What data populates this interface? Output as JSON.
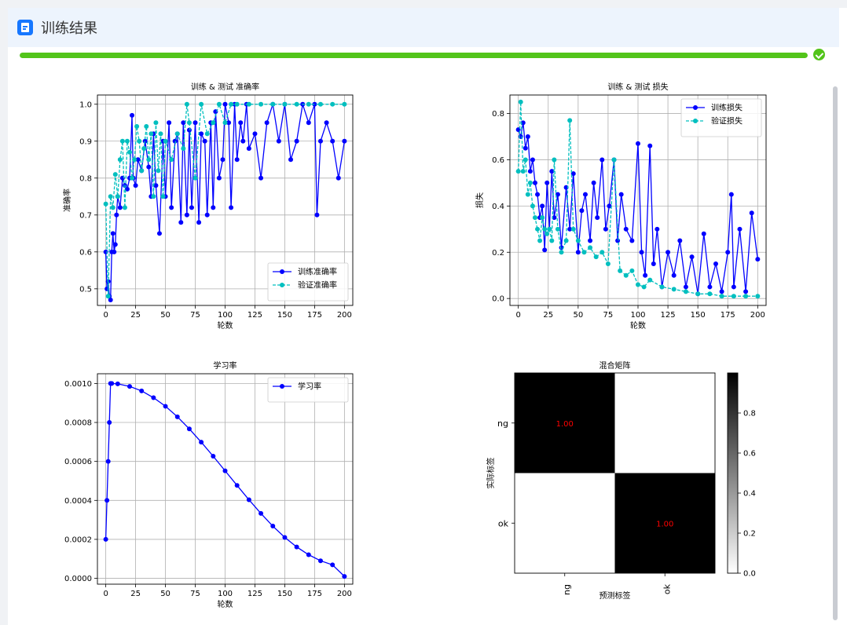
{
  "header": {
    "title": "训练结果",
    "icon": "document-icon"
  },
  "progress": {
    "percent": 100,
    "status": "success",
    "color": "#52c41a"
  },
  "chart_data": [
    {
      "type": "line",
      "title": "训练 & 测试 准确率",
      "xlabel": "轮数",
      "ylabel": "准确率",
      "xlim": [
        -7,
        207
      ],
      "ylim": [
        0.455,
        1.025
      ],
      "xticks": [
        0,
        25,
        50,
        75,
        100,
        125,
        150,
        175,
        200
      ],
      "yticks": [
        0.5,
        0.6,
        0.7,
        0.8,
        0.9,
        1.0
      ],
      "ytick_labels": [
        "0.5",
        "0.6",
        "0.7",
        "0.8",
        "0.9",
        "1.0"
      ],
      "grid": true,
      "legend": "lower-right",
      "series": [
        {
          "name": "训练准确率",
          "color": "#0000ff",
          "style": "solid",
          "x": [
            0,
            1,
            2,
            3,
            4,
            5,
            6,
            7,
            8,
            9,
            10,
            12,
            14,
            16,
            18,
            20,
            22,
            23,
            25,
            27,
            30,
            33,
            36,
            38,
            40,
            42,
            45,
            48,
            50,
            53,
            55,
            58,
            60,
            63,
            65,
            68,
            70,
            72,
            75,
            78,
            80,
            83,
            85,
            88,
            90,
            92,
            95,
            98,
            100,
            103,
            105,
            108,
            110,
            113,
            115,
            118,
            120,
            125,
            130,
            135,
            140,
            145,
            150,
            155,
            160,
            165,
            170,
            175,
            177,
            180,
            185,
            190,
            195,
            200
          ],
          "y": [
            0.6,
            0.5,
            0.52,
            0.48,
            0.47,
            0.6,
            0.65,
            0.6,
            0.62,
            0.7,
            0.75,
            0.72,
            0.8,
            0.78,
            0.77,
            0.8,
            0.97,
            0.8,
            0.78,
            0.85,
            0.82,
            0.9,
            0.83,
            0.75,
            0.92,
            0.78,
            0.65,
            0.9,
            0.75,
            0.95,
            0.72,
            0.9,
            0.92,
            0.68,
            0.95,
            0.7,
            0.93,
            0.72,
            0.95,
            0.68,
            0.92,
            0.9,
            0.7,
            0.95,
            0.72,
            0.98,
            0.8,
            0.85,
            1.0,
            0.95,
            0.72,
            1.0,
            0.85,
            0.95,
            0.9,
            1.0,
            0.88,
            0.92,
            0.8,
            0.95,
            1.0,
            0.9,
            1.0,
            0.85,
            0.9,
            1.0,
            0.95,
            1.0,
            0.7,
            0.9,
            0.95,
            0.9,
            0.8,
            0.9
          ]
        },
        {
          "name": "验证准确率",
          "color": "#00bfbf",
          "style": "dashed",
          "x": [
            0,
            2,
            4,
            6,
            8,
            10,
            12,
            14,
            16,
            18,
            20,
            22,
            24,
            26,
            28,
            30,
            32,
            34,
            36,
            38,
            40,
            42,
            44,
            46,
            48,
            50,
            55,
            60,
            65,
            68,
            70,
            75,
            80,
            85,
            90,
            95,
            100,
            105,
            110,
            120,
            130,
            140,
            150,
            160,
            170,
            180,
            190,
            200
          ],
          "y": [
            0.73,
            0.48,
            0.75,
            0.72,
            0.81,
            0.75,
            0.85,
            0.9,
            0.72,
            0.9,
            0.87,
            0.8,
            0.85,
            0.94,
            0.9,
            0.82,
            0.88,
            0.94,
            0.85,
            0.92,
            0.75,
            0.95,
            0.82,
            0.92,
            0.75,
            0.9,
            0.85,
            0.92,
            0.88,
            1.0,
            0.95,
            0.8,
            1.0,
            0.92,
            0.95,
            1.0,
            0.95,
            1.0,
            1.0,
            1.0,
            1.0,
            1.0,
            1.0,
            1.0,
            1.0,
            1.0,
            1.0,
            1.0
          ]
        }
      ]
    },
    {
      "type": "line",
      "title": "训练 & 测试 损失",
      "xlabel": "轮数",
      "ylabel": "损失",
      "xlim": [
        -7,
        207
      ],
      "ylim": [
        -0.03,
        0.88
      ],
      "xticks": [
        0,
        25,
        50,
        75,
        100,
        125,
        150,
        175,
        200
      ],
      "yticks": [
        0.0,
        0.2,
        0.4,
        0.6,
        0.8
      ],
      "ytick_labels": [
        "0.0",
        "0.2",
        "0.4",
        "0.6",
        "0.8"
      ],
      "grid": true,
      "legend": "upper-right",
      "series": [
        {
          "name": "训练损失",
          "color": "#0000ff",
          "style": "solid",
          "x": [
            0,
            2,
            4,
            6,
            8,
            10,
            12,
            14,
            16,
            18,
            20,
            22,
            24,
            26,
            28,
            30,
            33,
            36,
            40,
            43,
            46,
            50,
            53,
            56,
            60,
            63,
            66,
            70,
            73,
            76,
            80,
            83,
            86,
            90,
            95,
            100,
            103,
            106,
            110,
            113,
            116,
            120,
            125,
            130,
            135,
            140,
            145,
            150,
            155,
            160,
            165,
            170,
            175,
            178,
            180,
            185,
            190,
            195,
            200
          ],
          "y": [
            0.73,
            0.7,
            0.76,
            0.65,
            0.7,
            0.55,
            0.6,
            0.5,
            0.45,
            0.35,
            0.4,
            0.21,
            0.5,
            0.3,
            0.55,
            0.35,
            0.45,
            0.22,
            0.48,
            0.3,
            0.54,
            0.2,
            0.38,
            0.45,
            0.25,
            0.5,
            0.35,
            0.6,
            0.3,
            0.4,
            0.6,
            0.25,
            0.45,
            0.3,
            0.25,
            0.67,
            0.2,
            0.1,
            0.66,
            0.15,
            0.3,
            0.05,
            0.2,
            0.1,
            0.25,
            0.05,
            0.18,
            0.02,
            0.28,
            0.05,
            0.15,
            0.03,
            0.2,
            0.45,
            0.05,
            0.3,
            0.03,
            0.37,
            0.17
          ]
        },
        {
          "name": "验证损失",
          "color": "#00bfbf",
          "style": "dashed",
          "x": [
            0,
            2,
            4,
            6,
            8,
            10,
            12,
            14,
            16,
            18,
            20,
            22,
            24,
            26,
            28,
            30,
            33,
            36,
            40,
            43,
            46,
            50,
            55,
            60,
            65,
            70,
            75,
            80,
            85,
            90,
            95,
            100,
            105,
            110,
            120,
            130,
            140,
            150,
            160,
            170,
            180,
            190,
            200
          ],
          "y": [
            0.55,
            0.85,
            0.55,
            0.6,
            0.45,
            0.5,
            0.4,
            0.35,
            0.3,
            0.25,
            0.35,
            0.3,
            0.28,
            0.3,
            0.25,
            0.6,
            0.3,
            0.2,
            0.25,
            0.77,
            0.3,
            0.25,
            0.2,
            0.22,
            0.18,
            0.2,
            0.15,
            0.6,
            0.12,
            0.1,
            0.12,
            0.06,
            0.05,
            0.08,
            0.05,
            0.04,
            0.03,
            0.02,
            0.02,
            0.01,
            0.01,
            0.01,
            0.01
          ]
        }
      ]
    },
    {
      "type": "line",
      "title": "学习率",
      "xlabel": "轮数",
      "ylabel": "",
      "xlim": [
        -7,
        207
      ],
      "ylim": [
        -3e-05,
        0.00105
      ],
      "xticks": [
        0,
        25,
        50,
        75,
        100,
        125,
        150,
        175,
        200
      ],
      "yticks": [
        0.0,
        0.0002,
        0.0004,
        0.0006,
        0.0008,
        0.001
      ],
      "ytick_labels": [
        "0.0000",
        "0.0002",
        "0.0004",
        "0.0006",
        "0.0008",
        "0.0010"
      ],
      "grid": true,
      "legend": "upper-right",
      "series": [
        {
          "name": "学习率",
          "color": "#0000ff",
          "style": "solid",
          "schedule": "warmup 5 epochs, then cosine decay over 200 epochs",
          "x": [
            0,
            1,
            2,
            3,
            4,
            5,
            10,
            20,
            30,
            40,
            50,
            60,
            70,
            80,
            90,
            100,
            110,
            120,
            130,
            140,
            150,
            160,
            170,
            180,
            190,
            200
          ],
          "y": [
            0.0002,
            0.0004,
            0.0006,
            0.0008,
            0.001,
            0.001,
            0.000998,
            0.000985,
            0.000962,
            0.000927,
            0.000883,
            0.000829,
            0.000767,
            0.000699,
            0.000627,
            0.000552,
            0.000477,
            0.000403,
            0.000333,
            0.000268,
            0.00021,
            0.000161,
            0.000121,
            9e-05,
            6.9e-05,
            1e-05
          ]
        }
      ]
    },
    {
      "type": "heatmap",
      "title": "混合矩阵",
      "xlabel": "预测标签",
      "ylabel": "实际标签",
      "xtick_labels": [
        "ng",
        "ok"
      ],
      "ytick_labels": [
        "ng",
        "ok"
      ],
      "matrix": [
        [
          1.0,
          0.0
        ],
        [
          0.0,
          1.0
        ]
      ],
      "cell_labels": [
        [
          "1.00",
          ""
        ],
        [
          "",
          "1.00"
        ]
      ],
      "colorbar": {
        "ticks": [
          0.0,
          0.2,
          0.4,
          0.6,
          0.8
        ],
        "tick_labels": [
          "0.0",
          "0.2",
          "0.4",
          "0.6",
          "0.8"
        ],
        "min": 0,
        "max": 1,
        "cmap": "gray_r"
      },
      "label_color": "#ff0000"
    }
  ]
}
